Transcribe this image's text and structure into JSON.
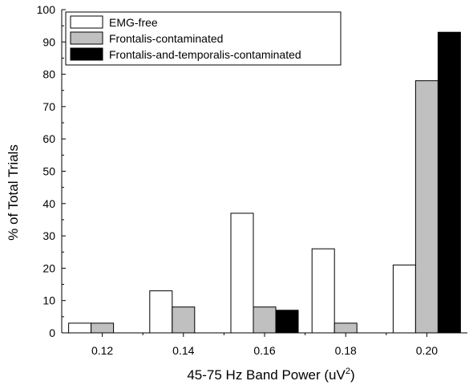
{
  "chart_data": {
    "type": "bar",
    "xlabel": "45-75 Hz Band Power (uV",
    "xlabel_sup": "2",
    "xlabel_end": ")",
    "ylabel": "% of Total Trials",
    "ylim": [
      0,
      100
    ],
    "yticks": [
      0,
      10,
      20,
      30,
      40,
      50,
      60,
      70,
      80,
      90,
      100
    ],
    "categories": [
      "0.12",
      "0.14",
      "0.16",
      "0.18",
      "0.20"
    ],
    "series": [
      {
        "name": "EMG-free",
        "color": "#ffffff",
        "values": [
          3,
          13,
          37,
          26,
          21
        ]
      },
      {
        "name": "Frontalis-contaminated",
        "color": "#c0c0c0",
        "values": [
          3,
          8,
          8,
          3,
          78
        ]
      },
      {
        "name": "Frontalis-and-temporalis-contaminated",
        "color": "#000000",
        "values": [
          0,
          0,
          7,
          0,
          93
        ]
      }
    ],
    "legend": "top-left",
    "grid": false
  }
}
